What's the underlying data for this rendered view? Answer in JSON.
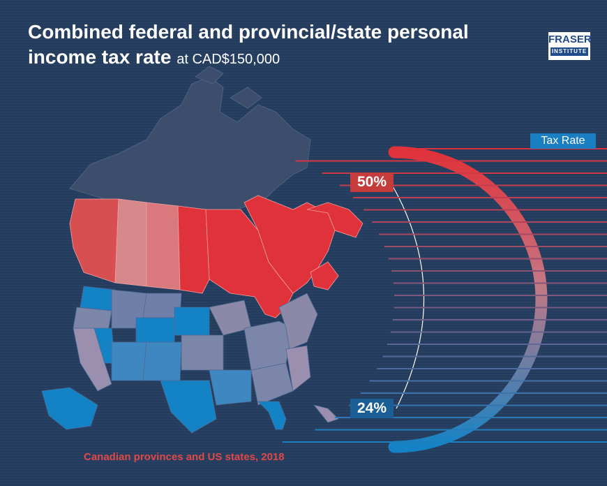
{
  "header": {
    "title_main": "Combined federal and provincial/state personal income tax rate",
    "title_sub": "at CAD$150,000"
  },
  "logo": {
    "line1": "FRASER",
    "line2": "INSTITUTE"
  },
  "legend": {
    "title": "Tax Rate",
    "high_label": "50%",
    "low_label": "24%",
    "high_value": 50,
    "low_value": 24,
    "high_color": "#e0323a",
    "low_color": "#1483c6"
  },
  "caption": "Canadian provinces and US states, 2018",
  "colors": {
    "background": "#243c5e",
    "north_territories": "#3c4e6b",
    "canada_high": "#e0323a",
    "canada_mid": "#d9797e",
    "us_high": "#7c86a8",
    "us_low": "#1483c6"
  }
}
